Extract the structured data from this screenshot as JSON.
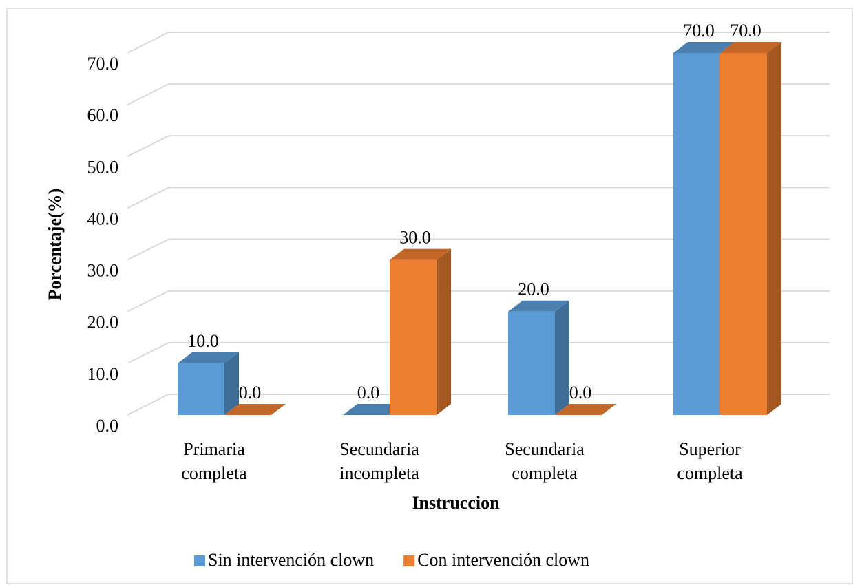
{
  "chart_data": {
    "type": "bar3d",
    "x_label": "Instruccion",
    "y_label": "Porcentaje(%)",
    "categories": [
      "Primaria completa",
      "Secundaria incompleta",
      "Secundaria completa",
      "Superior completa"
    ],
    "series": [
      {
        "name": "Sin intervención clown",
        "color": "#5b9bd5",
        "values": [
          10,
          0,
          20,
          70
        ],
        "value_labels": [
          "10.0",
          "0.0",
          "20.0",
          "70.0"
        ]
      },
      {
        "name": "Con intervención clown",
        "color": "#ed7d31",
        "values": [
          0,
          30,
          0,
          70
        ],
        "value_labels": [
          "0.0",
          "30.0",
          "0.0",
          "70.0"
        ]
      }
    ],
    "ylim": [
      0,
      70
    ],
    "yticks": [
      {
        "value": 0,
        "label": "0.0"
      },
      {
        "value": 10,
        "label": "10.0"
      },
      {
        "value": 20,
        "label": "20.0"
      },
      {
        "value": 30,
        "label": "30.0"
      },
      {
        "value": 40,
        "label": "40.0"
      },
      {
        "value": 50,
        "label": "50.0"
      },
      {
        "value": 60,
        "label": "60.0"
      },
      {
        "value": 70,
        "label": "70.0"
      }
    ],
    "grid": true,
    "legend": "bottom"
  }
}
